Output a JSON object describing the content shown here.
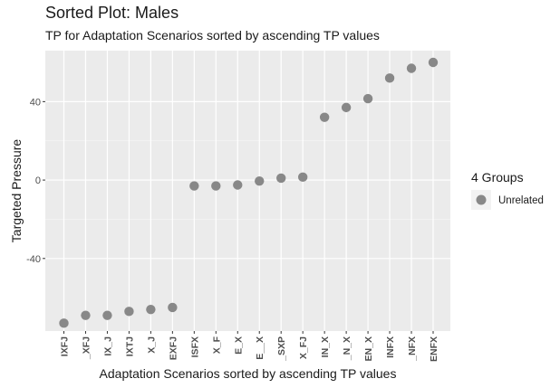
{
  "chart_data": {
    "type": "scatter",
    "title": "Sorted Plot: Males",
    "subtitle": "TP for Adaptation Scenarios sorted by ascending TP values",
    "xlabel": "Adaptation Scenarios sorted by ascending TP values",
    "ylabel": "Targeted Pressure",
    "categories": [
      "IXFJ",
      "_XFJ",
      "IX_J",
      "IXTJ",
      "X_J",
      "EXFJ",
      "ISFX",
      "X_F",
      "E_X",
      "E__X",
      "_SXP",
      "X_FJ",
      "IN_X",
      "_N_X",
      "EN_X",
      "INFX",
      "_NFX",
      "ENFX"
    ],
    "values": [
      -73,
      -69,
      -69,
      -67,
      -66,
      -65,
      -3,
      -3,
      -2.5,
      -0.5,
      1,
      1.5,
      32,
      37,
      41.5,
      52,
      57,
      60
    ],
    "yticks": [
      40,
      0,
      -40
    ],
    "ylim": [
      -77,
      66
    ],
    "grid": true,
    "point_color": "#888888",
    "panel_color": "#ebebeb",
    "legend": {
      "title": "4 Groups",
      "position": "right",
      "entries": [
        {
          "label": "Unrelated",
          "color": "#888888"
        }
      ]
    }
  }
}
